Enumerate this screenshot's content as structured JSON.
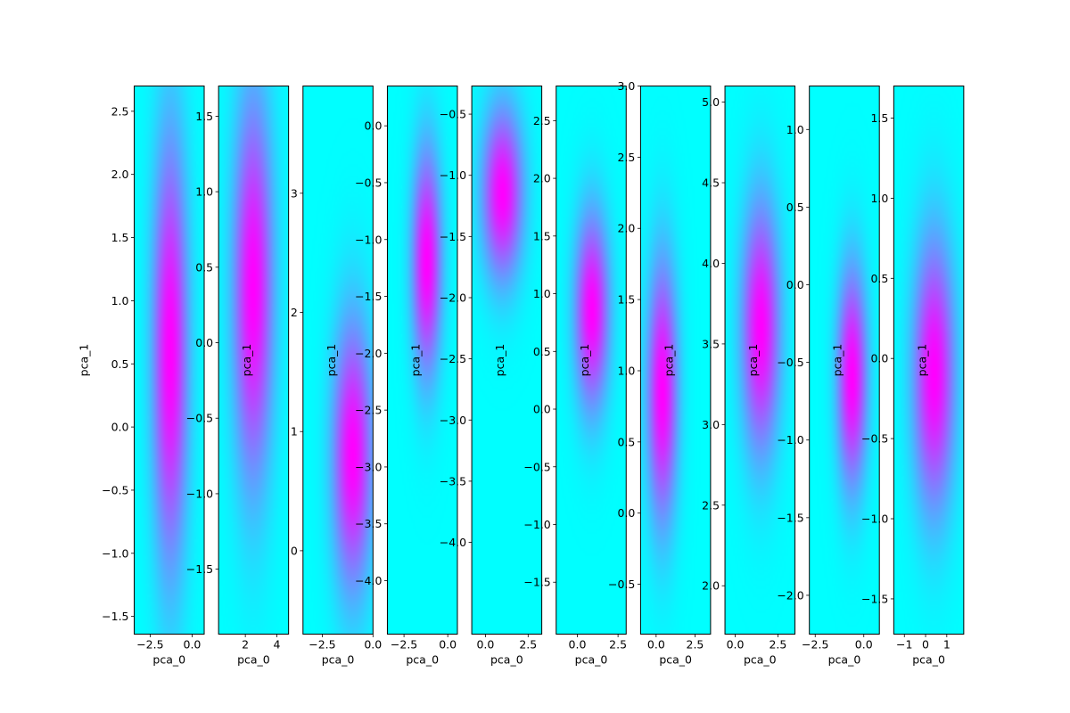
{
  "chart_data": [
    {
      "type": "heatmap",
      "xlabel": "pca_0",
      "ylabel": "pca_1",
      "xlim": [
        -3.45,
        0.72
      ],
      "ylim": [
        -1.64,
        2.7
      ],
      "xticks": [
        {
          "v": -2.5,
          "label": "−2.5"
        },
        {
          "v": 0.0,
          "label": "0.0"
        }
      ],
      "yticks": [
        {
          "v": -1.5,
          "label": "−1.5"
        },
        {
          "v": -1.0,
          "label": "−1.0"
        },
        {
          "v": -0.5,
          "label": "−0.5"
        },
        {
          "v": 0.0,
          "label": "0.0"
        },
        {
          "v": 0.5,
          "label": "0.5"
        },
        {
          "v": 1.0,
          "label": "1.0"
        },
        {
          "v": 1.5,
          "label": "1.5"
        },
        {
          "v": 2.0,
          "label": "2.0"
        },
        {
          "v": 2.5,
          "label": "2.5"
        }
      ],
      "density_peaks": [
        {
          "x": -1.3,
          "y": 0.6,
          "sx": 0.75,
          "sy": 1.2,
          "w": 1.0
        }
      ]
    },
    {
      "type": "heatmap",
      "xlabel": "pca_0",
      "ylabel": "pca_1",
      "xlim": [
        0.3,
        4.75
      ],
      "ylim": [
        -1.93,
        1.7
      ],
      "xticks": [
        {
          "v": 2,
          "label": "2"
        },
        {
          "v": 4,
          "label": "4"
        }
      ],
      "yticks": [
        {
          "v": -1.5,
          "label": "−1.5"
        },
        {
          "v": -1.0,
          "label": "−1.0"
        },
        {
          "v": -0.5,
          "label": "−0.5"
        },
        {
          "v": 0.0,
          "label": "0.0"
        },
        {
          "v": 0.5,
          "label": "0.5"
        },
        {
          "v": 1.0,
          "label": "1.0"
        },
        {
          "v": 1.5,
          "label": "1.5"
        }
      ],
      "density_peaks": [
        {
          "x": 2.5,
          "y": 0.35,
          "sx": 0.9,
          "sy": 0.9,
          "w": 1.0
        }
      ]
    },
    {
      "type": "heatmap",
      "xlabel": "pca_0",
      "ylabel": "pca_1",
      "xlim": [
        -3.45,
        0.0
      ],
      "ylim": [
        -0.7,
        3.9
      ],
      "xticks": [
        {
          "v": -2.5,
          "label": "−2.5"
        },
        {
          "v": 0.0,
          "label": "0.0"
        }
      ],
      "yticks": [
        {
          "v": 0,
          "label": "0"
        },
        {
          "v": 1,
          "label": "1"
        },
        {
          "v": 2,
          "label": "2"
        },
        {
          "v": 3,
          "label": "3"
        }
      ],
      "density_peaks": [
        {
          "x": -1.0,
          "y": 0.8,
          "sx": 0.7,
          "sy": 0.8,
          "w": 1.0
        }
      ]
    },
    {
      "type": "heatmap",
      "xlabel": "pca_0",
      "ylabel": "pca_1",
      "xlim": [
        -3.45,
        0.55
      ],
      "ylim": [
        -4.47,
        0.35
      ],
      "xticks": [
        {
          "v": -2.5,
          "label": "−2.5"
        },
        {
          "v": 0.0,
          "label": "0.0"
        }
      ],
      "yticks": [
        {
          "v": -4.0,
          "label": "−4.0"
        },
        {
          "v": -3.5,
          "label": "−3.5"
        },
        {
          "v": -3.0,
          "label": "−3.0"
        },
        {
          "v": -2.5,
          "label": "−2.5"
        },
        {
          "v": -2.0,
          "label": "−2.0"
        },
        {
          "v": -1.5,
          "label": "−1.5"
        },
        {
          "v": -1.0,
          "label": "−1.0"
        },
        {
          "v": -0.5,
          "label": "−0.5"
        },
        {
          "v": 0.0,
          "label": "0.0"
        }
      ],
      "density_peaks": [
        {
          "x": -1.2,
          "y": -1.2,
          "sx": 0.6,
          "sy": 0.7,
          "w": 1.0
        }
      ]
    },
    {
      "type": "heatmap",
      "xlabel": "pca_0",
      "ylabel": "pca_1",
      "xlim": [
        -0.8,
        3.3
      ],
      "ylim": [
        -4.75,
        -0.27
      ],
      "xticks": [
        {
          "v": 0.0,
          "label": "0.0"
        },
        {
          "v": 2.5,
          "label": "2.5"
        }
      ],
      "yticks": [
        {
          "v": -4.0,
          "label": "−4.0"
        },
        {
          "v": -3.5,
          "label": "−3.5"
        },
        {
          "v": -3.0,
          "label": "−3.0"
        },
        {
          "v": -2.5,
          "label": "−2.5"
        },
        {
          "v": -2.0,
          "label": "−2.0"
        },
        {
          "v": -1.5,
          "label": "−1.5"
        },
        {
          "v": -1.0,
          "label": "−1.0"
        },
        {
          "v": -0.5,
          "label": "−0.5"
        }
      ],
      "density_peaks": [
        {
          "x": 1.0,
          "y": -1.15,
          "sx": 0.85,
          "sy": 0.5,
          "w": 1.0
        }
      ]
    },
    {
      "type": "heatmap",
      "xlabel": "pca_0",
      "ylabel": "pca_1",
      "xlim": [
        -1.3,
        3.0
      ],
      "ylim": [
        -1.95,
        2.8
      ],
      "xticks": [
        {
          "v": 0.0,
          "label": "0.0"
        },
        {
          "v": 2.5,
          "label": "2.5"
        }
      ],
      "yticks": [
        {
          "v": -1.5,
          "label": "−1.5"
        },
        {
          "v": -1.0,
          "label": "−1.0"
        },
        {
          "v": -0.5,
          "label": "−0.5"
        },
        {
          "v": 0.0,
          "label": "0.0"
        },
        {
          "v": 0.5,
          "label": "0.5"
        },
        {
          "v": 1.0,
          "label": "1.0"
        },
        {
          "v": 1.5,
          "label": "1.5"
        },
        {
          "v": 2.0,
          "label": "2.0"
        },
        {
          "v": 2.5,
          "label": "2.5"
        }
      ],
      "density_peaks": [
        {
          "x": 0.9,
          "y": 0.85,
          "sx": 0.75,
          "sy": 0.6,
          "w": 1.0
        }
      ]
    },
    {
      "type": "heatmap",
      "xlabel": "pca_0",
      "ylabel": "pca_1",
      "xlim": [
        -1.0,
        3.5
      ],
      "ylim": [
        -0.85,
        3.0
      ],
      "xticks": [
        {
          "v": 0.0,
          "label": "0.0"
        },
        {
          "v": 2.5,
          "label": "2.5"
        }
      ],
      "yticks": [
        {
          "v": -0.5,
          "label": "−0.5"
        },
        {
          "v": 0.0,
          "label": "0.0"
        },
        {
          "v": 0.5,
          "label": "0.5"
        },
        {
          "v": 1.0,
          "label": "1.0"
        },
        {
          "v": 1.5,
          "label": "1.5"
        },
        {
          "v": 2.0,
          "label": "2.0"
        },
        {
          "v": 2.5,
          "label": "2.5"
        },
        {
          "v": 3.0,
          "label": "3.0"
        }
      ],
      "density_peaks": [
        {
          "x": 0.4,
          "y": 0.85,
          "sx": 0.7,
          "sy": 0.65,
          "w": 1.0
        }
      ]
    },
    {
      "type": "heatmap",
      "xlabel": "pca_0",
      "ylabel": "pca_1",
      "xlim": [
        -0.6,
        3.5
      ],
      "ylim": [
        1.7,
        5.1
      ],
      "xticks": [
        {
          "v": 0.0,
          "label": "0.0"
        },
        {
          "v": 2.5,
          "label": "2.5"
        }
      ],
      "yticks": [
        {
          "v": 2.0,
          "label": "2.0"
        },
        {
          "v": 2.5,
          "label": "2.5"
        },
        {
          "v": 3.0,
          "label": "3.0"
        },
        {
          "v": 3.5,
          "label": "3.5"
        },
        {
          "v": 4.0,
          "label": "4.0"
        },
        {
          "v": 4.5,
          "label": "4.5"
        },
        {
          "v": 5.0,
          "label": "5.0"
        }
      ],
      "density_peaks": [
        {
          "x": 1.5,
          "y": 3.6,
          "sx": 0.8,
          "sy": 0.55,
          "w": 1.0
        }
      ]
    },
    {
      "type": "heatmap",
      "xlabel": "pca_0",
      "ylabel": "pca_1",
      "xlim": [
        -2.8,
        0.8
      ],
      "ylim": [
        -2.25,
        1.28
      ],
      "xticks": [
        {
          "v": -2.5,
          "label": "−2.5"
        },
        {
          "v": 0.0,
          "label": "0.0"
        }
      ],
      "yticks": [
        {
          "v": -2.0,
          "label": "−2.0"
        },
        {
          "v": -1.5,
          "label": "−1.5"
        },
        {
          "v": -1.0,
          "label": "−1.0"
        },
        {
          "v": -0.5,
          "label": "−0.5"
        },
        {
          "v": 0.0,
          "label": "0.0"
        },
        {
          "v": 0.5,
          "label": "0.5"
        },
        {
          "v": 1.0,
          "label": "1.0"
        }
      ],
      "density_peaks": [
        {
          "x": -0.6,
          "y": -0.6,
          "sx": 0.55,
          "sy": 0.5,
          "w": 1.0
        }
      ]
    },
    {
      "type": "heatmap",
      "xlabel": "pca_0",
      "ylabel": "pca_1",
      "xlim": [
        -1.5,
        1.8
      ],
      "ylim": [
        -1.72,
        1.7
      ],
      "xticks": [
        {
          "v": -1,
          "label": "−1"
        },
        {
          "v": 0,
          "label": "0"
        },
        {
          "v": 1,
          "label": "1"
        }
      ],
      "yticks": [
        {
          "v": -1.5,
          "label": "−1.5"
        },
        {
          "v": -1.0,
          "label": "−1.0"
        },
        {
          "v": -0.5,
          "label": "−0.5"
        },
        {
          "v": 0.0,
          "label": "0.0"
        },
        {
          "v": 0.5,
          "label": "0.5"
        },
        {
          "v": 1.0,
          "label": "1.0"
        },
        {
          "v": 1.5,
          "label": "1.5"
        }
      ],
      "density_peaks": [
        {
          "x": 0.4,
          "y": -0.1,
          "sx": 0.7,
          "sy": 0.6,
          "w": 1.0
        }
      ]
    }
  ],
  "colors": {
    "low": "#00ffff",
    "high": "#ff00ff",
    "spine": "#000000",
    "text": "#000000"
  }
}
